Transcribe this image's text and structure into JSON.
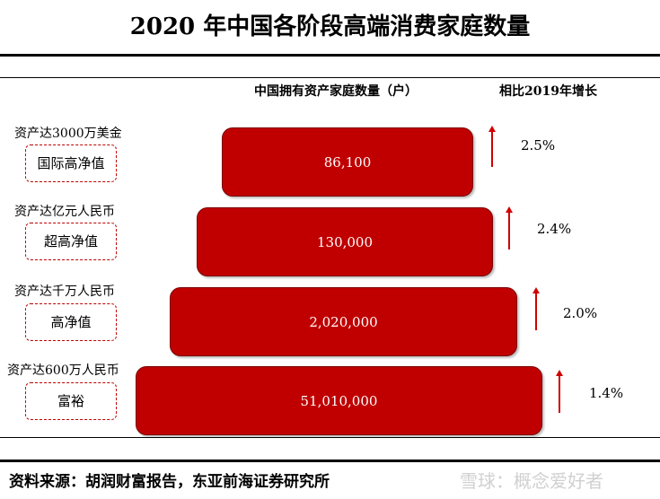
{
  "title": "2020 年中国各阶段高端消费家庭数量",
  "header": {
    "count_col": "中国拥有资产家庭数量（户）",
    "growth_col": "相比2019年增长"
  },
  "tiers": [
    {
      "threshold": "资产达3000万美金",
      "name": "国际高净值",
      "households_label": "86,100",
      "growth_label": "2.5%"
    },
    {
      "threshold": "资产达亿元人民币",
      "name": "超高净值",
      "households_label": "130,000",
      "growth_label": "2.4%"
    },
    {
      "threshold": "资产达千万人民币",
      "name": "高净值",
      "households_label": "2,020,000",
      "growth_label": "2.0%"
    },
    {
      "threshold": "资产达600万人民币",
      "name": "富裕",
      "households_label": "51,010,000",
      "growth_label": "1.4%"
    }
  ],
  "source": "资料来源：胡润财富报告，东亚前海证券研究所",
  "watermark": "雪球：概念爱好者",
  "colors": {
    "bar": "#c00000",
    "arrow": "#d00000",
    "dashed_border": "#c00000"
  },
  "chart_data": {
    "type": "bar",
    "orientation": "horizontal-pyramid",
    "title": "2020 年中国各阶段高端消费家庭数量",
    "categories": [
      "国际高净值",
      "超高净值",
      "高净值",
      "富裕"
    ],
    "series": [
      {
        "name": "中国拥有资产家庭数量（户）",
        "values": [
          86100,
          130000,
          2020000,
          51010000
        ]
      },
      {
        "name": "相比2019年增长",
        "values": [
          2.5,
          2.4,
          2.0,
          1.4
        ]
      }
    ]
  }
}
